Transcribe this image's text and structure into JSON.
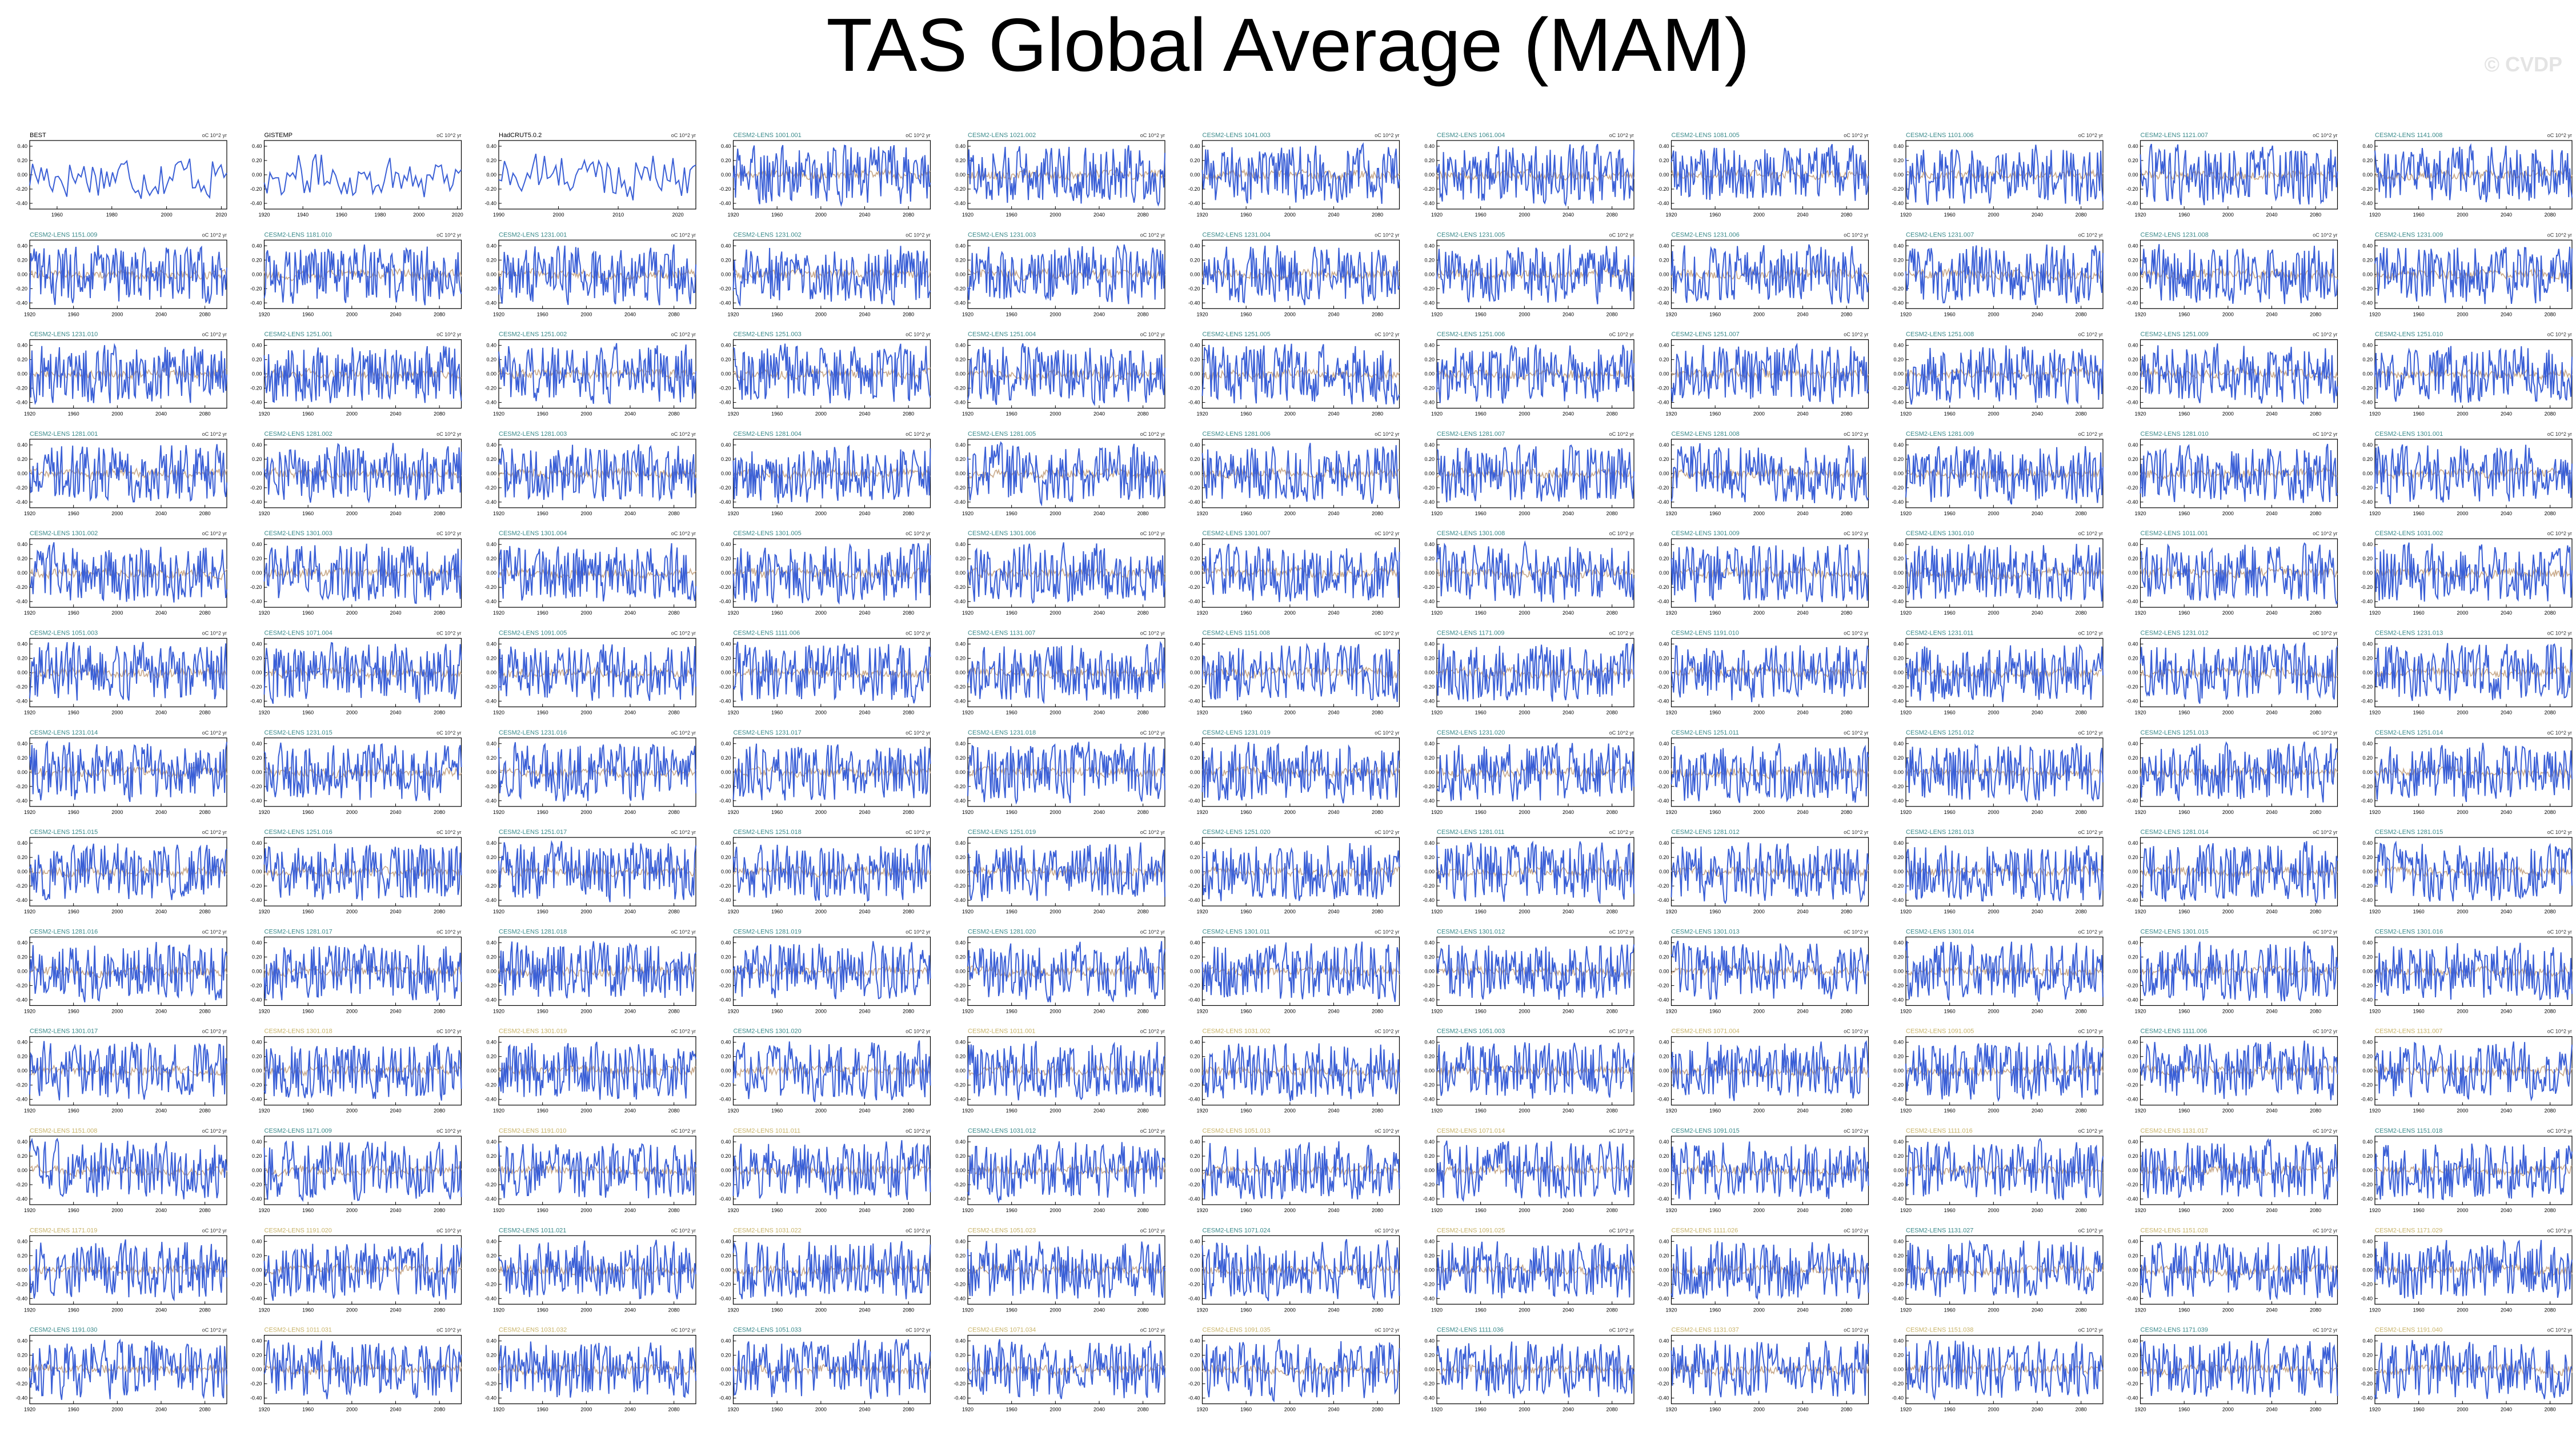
{
  "title": "TAS Global Average (MAM)",
  "watermark": "© CVDP",
  "colors": {
    "series": "#3a5fd6",
    "ensemble_mean": "#c8a98a",
    "obs_label": "#000000",
    "model_label_a": "#3a8a8a",
    "model_label_b": "#c9b46a",
    "frame": "#000000"
  },
  "chart_data": {
    "type": "line",
    "layout": "small-multiples",
    "rows": 13,
    "cols": 11,
    "units_label": "oC 10^2 yr",
    "observations": [
      {
        "name": "BEST",
        "xlim": [
          1950,
          2022
        ],
        "xticks": [
          "1960",
          "1980",
          "2000",
          "2020"
        ],
        "ylim": [
          -0.4,
          0.4
        ],
        "yticks": [
          "0.40",
          "0.20",
          "0.00",
          "-0.20",
          "-0.40"
        ]
      },
      {
        "name": "GISTEMP",
        "xlim": [
          1920,
          2022
        ],
        "xticks": [
          "1920",
          "1940",
          "1960",
          "1980",
          "2000",
          "2020"
        ],
        "ylim": [
          -0.4,
          0.4
        ],
        "yticks": [
          "0.40",
          "0.20",
          "0.00",
          "-0.20",
          "-0.40"
        ]
      },
      {
        "name": "HadCRUT5.0.2",
        "xlim": [
          1990,
          2023
        ],
        "xticks": [
          "1990",
          "2000",
          "2010",
          "2020"
        ],
        "ylim": [
          -0.4,
          0.4
        ],
        "yticks": [
          "0.40",
          "0.20",
          "0.00",
          "-0.20",
          "-0.40"
        ]
      }
    ],
    "model_panels": {
      "xlim": [
        1920,
        2100
      ],
      "xticks": [
        "1920",
        "1960",
        "2000",
        "2040",
        "2080"
      ],
      "ylim": [
        -0.4,
        0.4
      ],
      "yticks": [
        "0.40",
        "0.20",
        "0.00",
        "-0.20",
        "-0.40"
      ],
      "label_prefix": "CESM2-LENS"
    },
    "members": [
      "1001.001",
      "1021.002",
      "1041.003",
      "1061.004",
      "1081.005",
      "1101.006",
      "1121.007",
      "1141.008",
      "1151.009",
      "1181.010",
      "1231.001",
      "1231.002",
      "1231.003",
      "1231.004",
      "1231.005",
      "1231.006",
      "1231.007",
      "1231.008",
      "1231.009",
      "1231.010",
      "1251.001",
      "1251.002",
      "1251.003",
      "1251.004",
      "1251.005",
      "1251.006",
      "1251.007",
      "1251.008",
      "1251.009",
      "1251.010",
      "1281.001",
      "1281.002",
      "1281.003",
      "1281.004",
      "1281.005",
      "1281.006",
      "1281.007",
      "1281.008",
      "1281.009",
      "1281.010",
      "1301.001",
      "1301.002",
      "1301.003",
      "1301.004",
      "1301.005",
      "1301.006",
      "1301.007",
      "1301.008",
      "1301.009",
      "1301.010",
      "1011.001",
      "1031.002",
      "1051.003",
      "1071.004",
      "1091.005",
      "1111.006",
      "1131.007",
      "1151.008",
      "1171.009",
      "1191.010",
      "1231.011",
      "1231.012",
      "1231.013",
      "1231.014",
      "1231.015",
      "1231.016",
      "1231.017",
      "1231.018",
      "1231.019",
      "1231.020",
      "1251.011",
      "1251.012",
      "1251.013",
      "1251.014",
      "1251.015",
      "1251.016",
      "1251.017",
      "1251.018",
      "1251.019",
      "1251.020",
      "1281.011",
      "1281.012",
      "1281.013",
      "1281.014",
      "1281.015",
      "1281.016",
      "1281.017",
      "1281.018",
      "1281.019",
      "1281.020",
      "1301.011",
      "1301.012",
      "1301.013",
      "1301.014",
      "1301.015",
      "1301.016",
      "1301.017",
      "1301.018",
      "1301.019",
      "1301.020",
      "1011.001",
      "1031.002",
      "1051.003",
      "1071.004",
      "1091.005",
      "1111.006",
      "1131.007",
      "1151.008",
      "1171.009",
      "1191.010",
      "1011.011",
      "1031.012",
      "1051.013",
      "1071.014",
      "1091.015",
      "1111.016",
      "1131.017",
      "1151.018",
      "1171.019",
      "1191.020",
      "1011.021",
      "1031.022",
      "1051.023",
      "1071.024",
      "1091.025",
      "1111.026",
      "1131.027",
      "1151.028",
      "1171.029",
      "1191.030",
      "1011.031",
      "1031.032",
      "1051.033",
      "1071.034",
      "1091.035",
      "1111.036",
      "1131.037",
      "1151.038",
      "1171.039",
      "1191.040"
    ]
  }
}
